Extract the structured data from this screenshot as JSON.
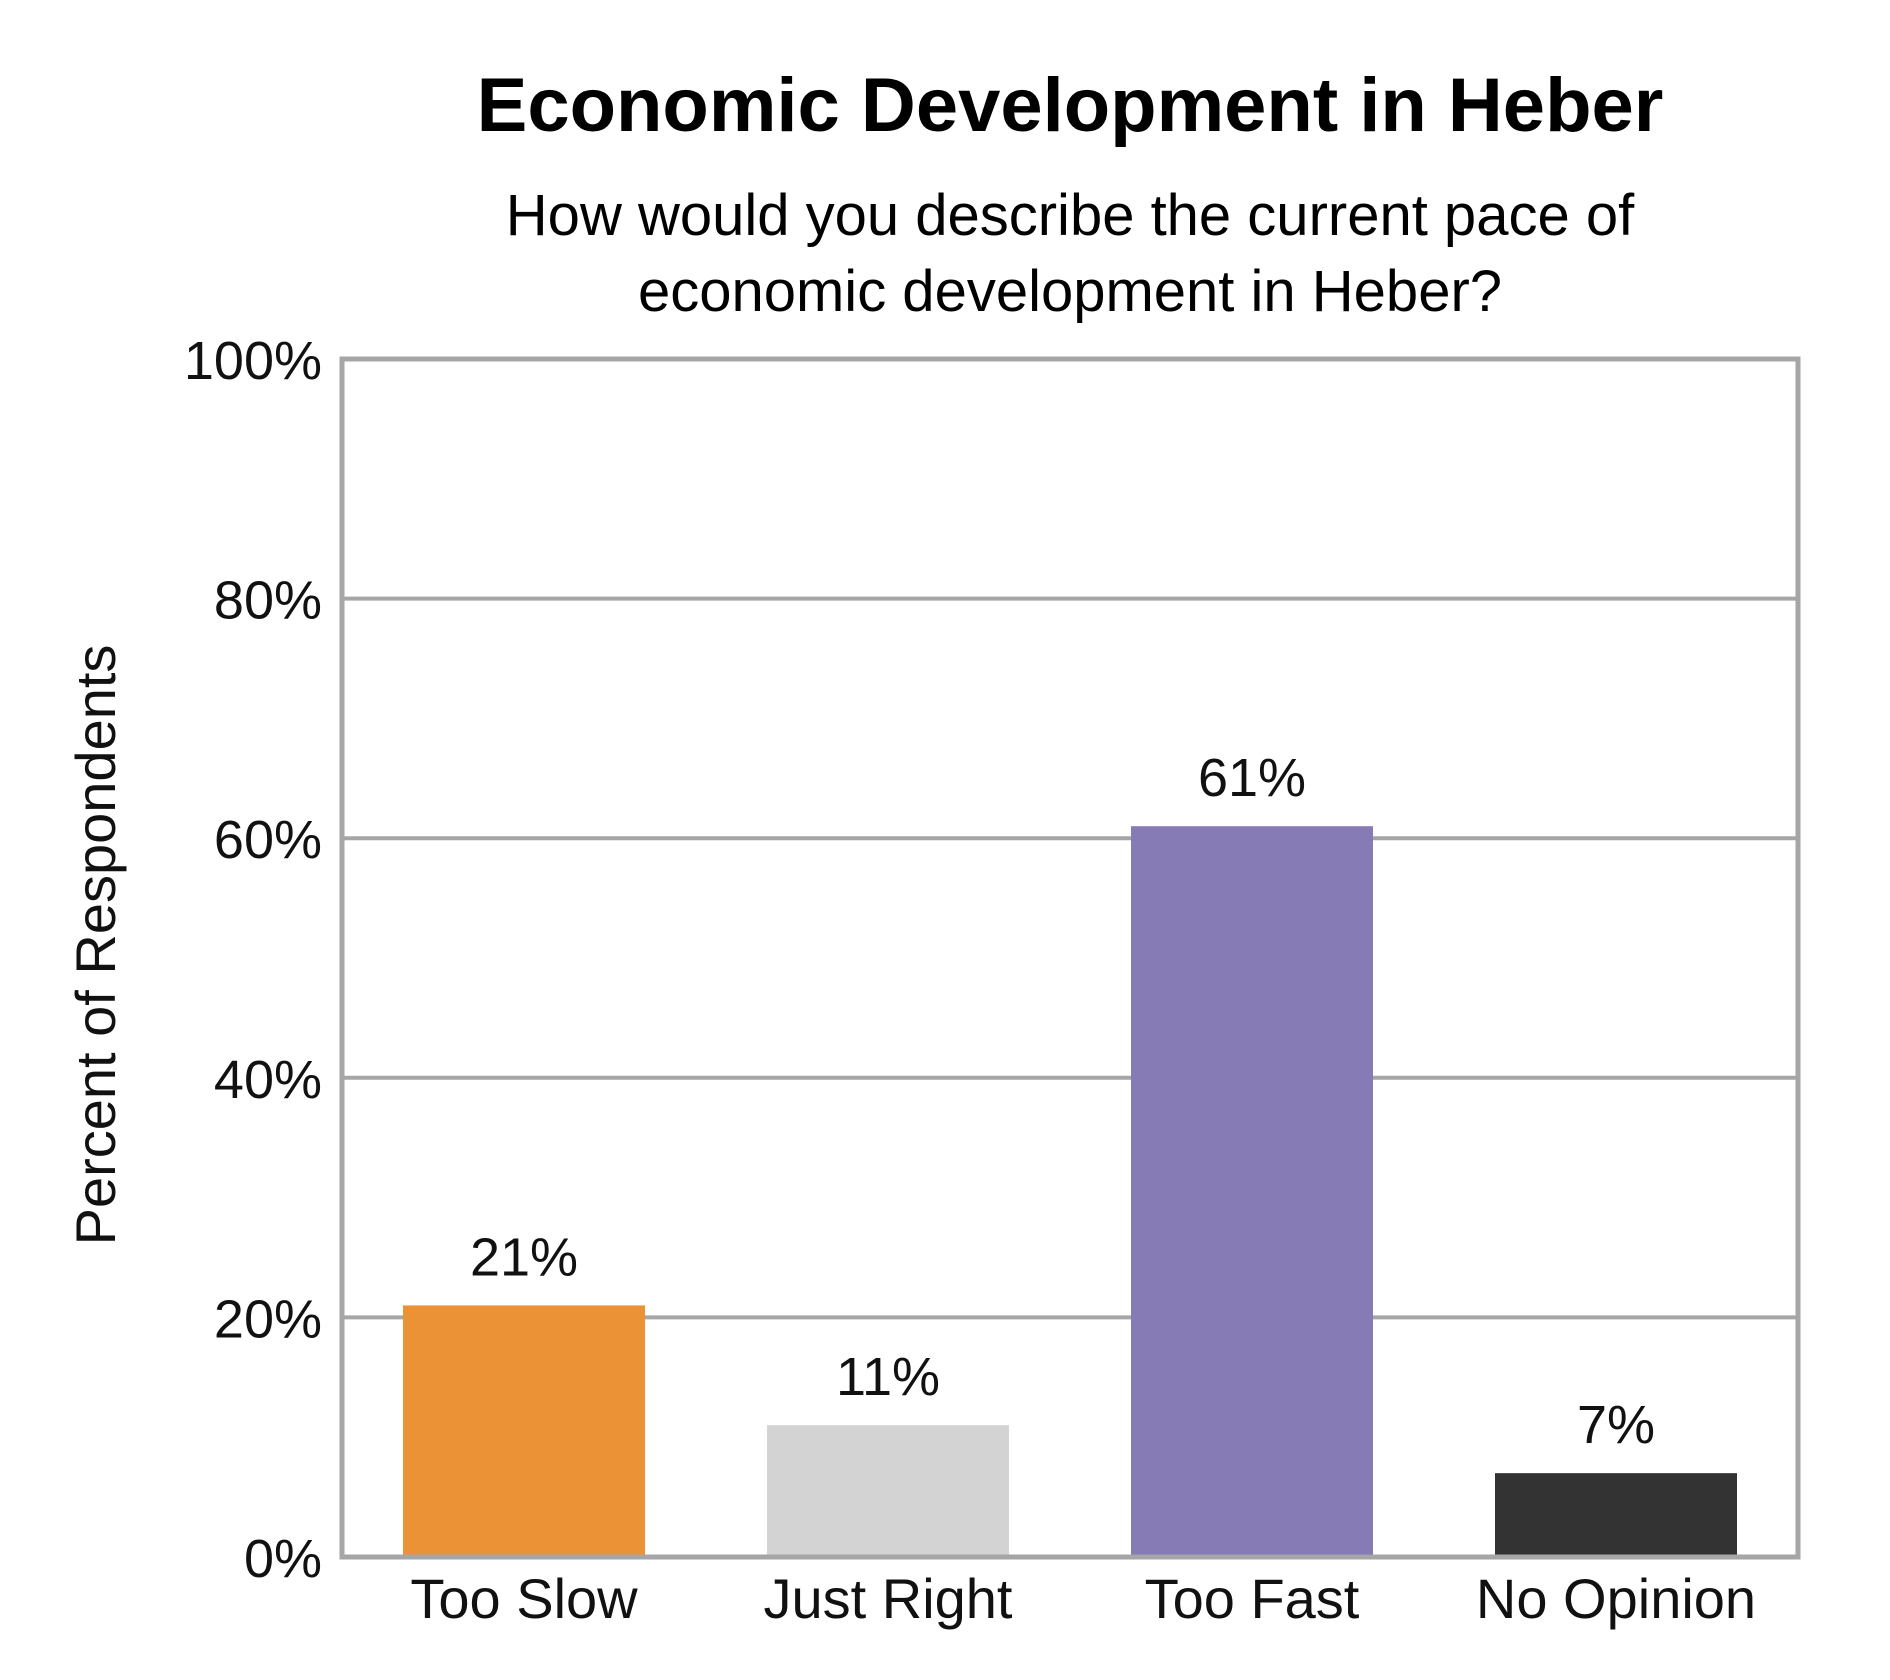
{
  "chart_data": {
    "type": "bar",
    "title": "Economic Development in Heber",
    "subtitle": "How would you describe the current pace of\neconomic development in Heber?",
    "ylabel": "Percent of Respondents",
    "xlabel": "",
    "categories": [
      "Too Slow",
      "Just Right",
      "Too Fast",
      "No Opinion"
    ],
    "values": [
      21,
      11,
      61,
      7
    ],
    "data_labels": [
      "21%",
      "11%",
      "61%",
      "7%"
    ],
    "colors": [
      "#ea9235",
      "#d3d3d3",
      "#877bb5",
      "#333333"
    ],
    "ylim": [
      0,
      100
    ],
    "yticks": [
      0,
      20,
      40,
      60,
      80,
      100
    ],
    "ytick_labels": [
      "0%",
      "20%",
      "40%",
      "60%",
      "80%",
      "100%"
    ],
    "grid": true,
    "legend": false
  }
}
